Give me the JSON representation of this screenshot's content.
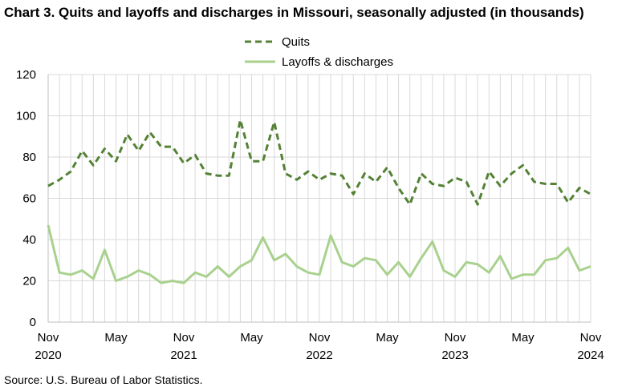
{
  "title": "Chart 3. Quits and layoffs and discharges in Missouri, seasonally adjusted (in thousands)",
  "source": "Source: U.S. Bureau of Labor Statistics.",
  "colors": {
    "quits": "#548235",
    "layoffs": "#A9D18E",
    "grid": "#d9d9d9",
    "axis": "#bfbfbf"
  },
  "chart_data": {
    "type": "line",
    "title": "Chart 3. Quits and layoffs and discharges in Missouri, seasonally adjusted (in thousands)",
    "xlabel": "",
    "ylabel": "",
    "ylim": [
      0,
      120
    ],
    "yticks": [
      0,
      20,
      40,
      60,
      80,
      100,
      120
    ],
    "grid": true,
    "legend_position": "top-center",
    "x": [
      "Nov 2020",
      "Dec 2020",
      "Jan 2021",
      "Feb 2021",
      "Mar 2021",
      "Apr 2021",
      "May 2021",
      "Jun 2021",
      "Jul 2021",
      "Aug 2021",
      "Sep 2021",
      "Oct 2021",
      "Nov 2021",
      "Dec 2021",
      "Jan 2022",
      "Feb 2022",
      "Mar 2022",
      "Apr 2022",
      "May 2022",
      "Jun 2022",
      "Jul 2022",
      "Aug 2022",
      "Sep 2022",
      "Oct 2022",
      "Nov 2022",
      "Dec 2022",
      "Jan 2023",
      "Feb 2023",
      "Mar 2023",
      "Apr 2023",
      "May 2023",
      "Jun 2023",
      "Jul 2023",
      "Aug 2023",
      "Sep 2023",
      "Oct 2023",
      "Nov 2023",
      "Dec 2023",
      "Jan 2024",
      "Feb 2024",
      "Mar 2024",
      "Apr 2024",
      "May 2024",
      "Jun 2024",
      "Jul 2024",
      "Aug 2024",
      "Sep 2024",
      "Oct 2024",
      "Nov 2024"
    ],
    "x_tick_labels": [
      {
        "month": "Nov",
        "year": "2020"
      },
      {
        "month": "May",
        "year": ""
      },
      {
        "month": "Nov",
        "year": "2021"
      },
      {
        "month": "May",
        "year": ""
      },
      {
        "month": "Nov",
        "year": "2022"
      },
      {
        "month": "May",
        "year": ""
      },
      {
        "month": "Nov",
        "year": "2023"
      },
      {
        "month": "May",
        "year": ""
      },
      {
        "month": "Nov",
        "year": "2024"
      }
    ],
    "series": [
      {
        "name": "Quits",
        "style": "dashed",
        "values": [
          66,
          69,
          73,
          83,
          76,
          84,
          78,
          91,
          83,
          92,
          85,
          85,
          77,
          81,
          72,
          71,
          71,
          98,
          78,
          78,
          97,
          72,
          69,
          73,
          69,
          72,
          71,
          62,
          72,
          68,
          75,
          65,
          57,
          72,
          67,
          66,
          70,
          68,
          57,
          73,
          66,
          72,
          76,
          68,
          67,
          67,
          58,
          65,
          62
        ]
      },
      {
        "name": "Layoffs & discharges",
        "style": "solid",
        "values": [
          47,
          24,
          23,
          25,
          21,
          35,
          20,
          22,
          25,
          23,
          19,
          20,
          19,
          24,
          22,
          27,
          22,
          27,
          30,
          41,
          30,
          33,
          27,
          24,
          23,
          42,
          29,
          27,
          31,
          30,
          23,
          29,
          22,
          31,
          39,
          25,
          22,
          29,
          28,
          24,
          32,
          21,
          23,
          23,
          30,
          31,
          36,
          25,
          27
        ]
      }
    ]
  }
}
